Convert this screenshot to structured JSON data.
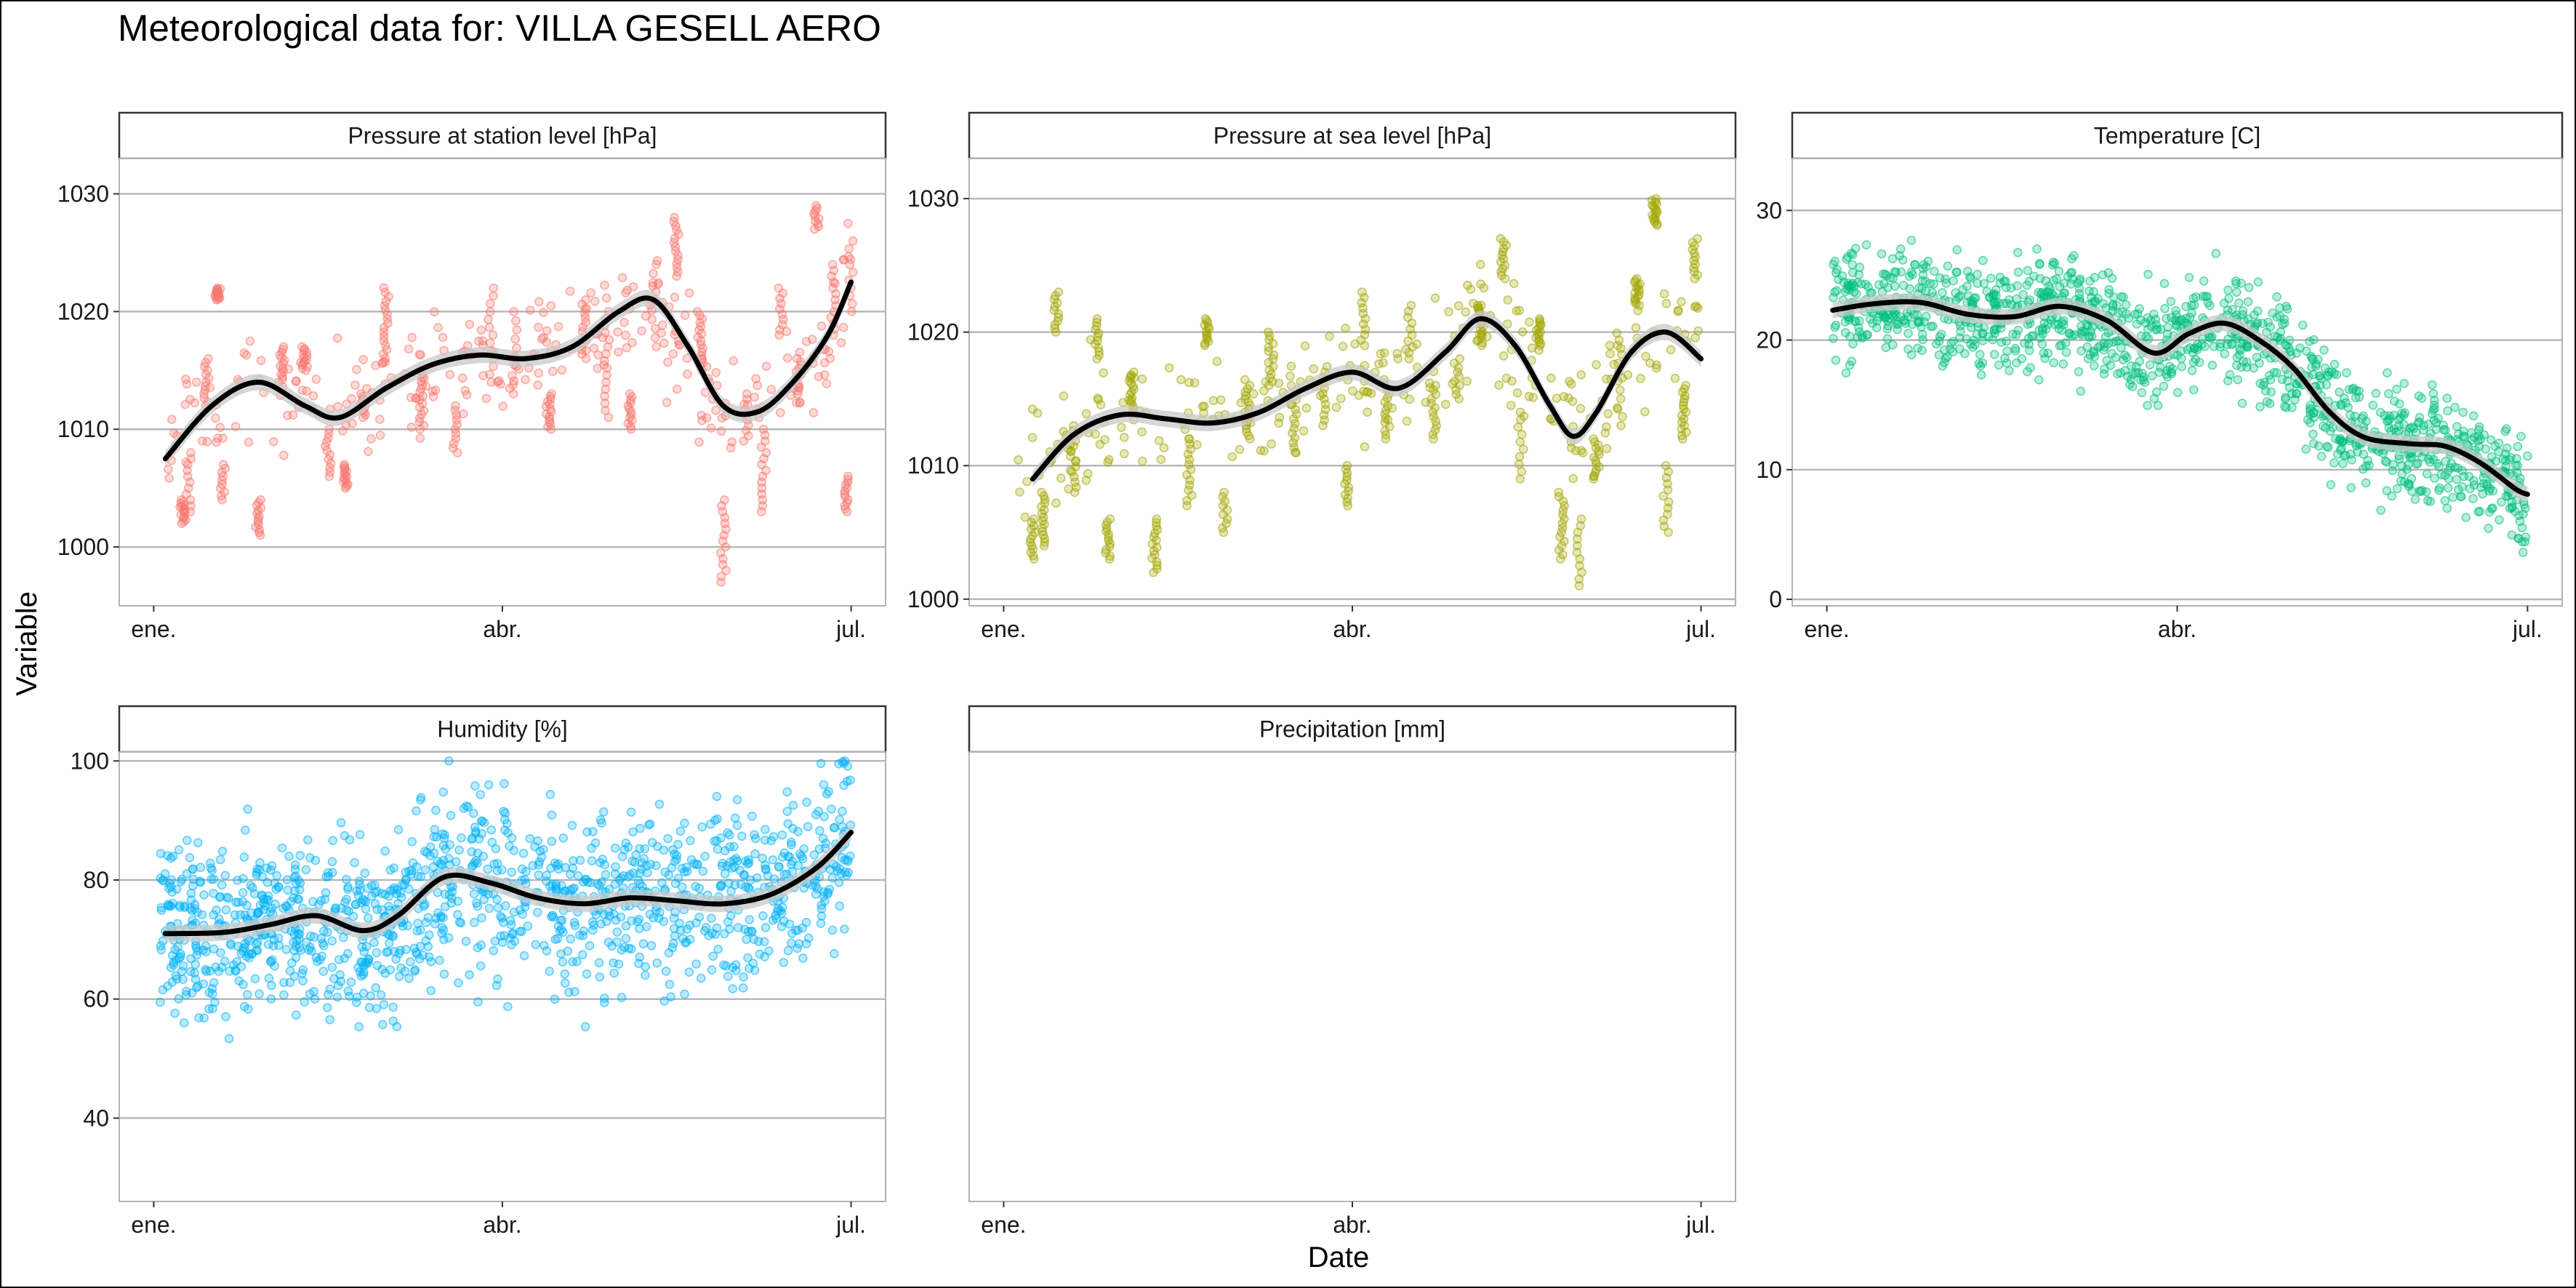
{
  "title": "Meteorological data for: VILLA GESELL AERO",
  "chart_data": {
    "type": "scatter",
    "title": "Meteorological data for: VILLA GESELL AERO",
    "xlabel": "Date",
    "ylabel": "Variable",
    "x_tick_labels": [
      "ene.",
      "abr.",
      "jul."
    ],
    "x_range_months": [
      0,
      6
    ],
    "smoother": {
      "color": "#000000",
      "band": "#c8c8c8"
    },
    "grid": "horizontal major",
    "panels": [
      {
        "name": "Pressure at station level [hPa]",
        "color": "#F8766D",
        "ylim": [
          995,
          1033
        ],
        "yticks": [
          1000,
          1010,
          1020,
          1030
        ],
        "x_dense": [
          0,
          6
        ],
        "trend": [
          [
            0.1,
            1007.5
          ],
          [
            0.5,
            1012
          ],
          [
            0.9,
            1014
          ],
          [
            1.3,
            1012
          ],
          [
            1.6,
            1011
          ],
          [
            2.0,
            1013.5
          ],
          [
            2.4,
            1015.5
          ],
          [
            2.8,
            1016.3
          ],
          [
            3.2,
            1016
          ],
          [
            3.6,
            1017
          ],
          [
            4.0,
            1020
          ],
          [
            4.3,
            1021
          ],
          [
            4.6,
            1017
          ],
          [
            4.9,
            1012
          ],
          [
            5.2,
            1011.5
          ],
          [
            5.5,
            1014
          ],
          [
            5.8,
            1018
          ],
          [
            6.0,
            1022.5
          ]
        ],
        "clusters": [
          [
            0.25,
            1002,
            1004
          ],
          [
            0.3,
            1003,
            1008
          ],
          [
            0.45,
            1012,
            1016
          ],
          [
            0.55,
            1021,
            1022
          ],
          [
            0.6,
            1004,
            1007
          ],
          [
            0.9,
            1001,
            1004
          ],
          [
            1.1,
            1014,
            1017
          ],
          [
            1.3,
            1015,
            1017
          ],
          [
            1.5,
            1006,
            1010
          ],
          [
            1.65,
            1005,
            1007
          ],
          [
            1.8,
            1011,
            1013
          ],
          [
            2.0,
            1016,
            1022
          ],
          [
            2.3,
            1010,
            1015
          ],
          [
            2.6,
            1008,
            1012
          ],
          [
            2.9,
            1014,
            1022
          ],
          [
            3.1,
            1013,
            1020
          ],
          [
            3.4,
            1010,
            1013
          ],
          [
            3.7,
            1016,
            1021
          ],
          [
            3.9,
            1011,
            1020
          ],
          [
            4.1,
            1010,
            1013
          ],
          [
            4.3,
            1017,
            1024
          ],
          [
            4.5,
            1023,
            1028
          ],
          [
            4.7,
            1015,
            1020
          ],
          [
            4.9,
            997,
            1004
          ],
          [
            5.1,
            1009,
            1013
          ],
          [
            5.25,
            1003,
            1010
          ],
          [
            5.4,
            1018,
            1022
          ],
          [
            5.55,
            1013,
            1016
          ],
          [
            5.7,
            1027,
            1029
          ],
          [
            5.85,
            1018,
            1024
          ],
          [
            5.95,
            1003,
            1006
          ],
          [
            6.0,
            1020,
            1026
          ]
        ]
      },
      {
        "name": "Pressure at sea level [hPa]",
        "color": "#A3A500",
        "ylim": [
          999.5,
          1033
        ],
        "yticks": [
          1000,
          1010,
          1020,
          1030
        ],
        "x_dense": [
          0,
          6
        ],
        "trend": [
          [
            0.25,
            1009
          ],
          [
            0.6,
            1012.3
          ],
          [
            1.0,
            1013.8
          ],
          [
            1.4,
            1013.5
          ],
          [
            1.8,
            1013.2
          ],
          [
            2.2,
            1014
          ],
          [
            2.6,
            1015.8
          ],
          [
            3.0,
            1017
          ],
          [
            3.4,
            1015.8
          ],
          [
            3.8,
            1018.5
          ],
          [
            4.1,
            1021
          ],
          [
            4.4,
            1019
          ],
          [
            4.7,
            1014.5
          ],
          [
            4.9,
            1012.2
          ],
          [
            5.1,
            1014
          ],
          [
            5.4,
            1018.5
          ],
          [
            5.7,
            1020
          ],
          [
            6.0,
            1018
          ]
        ],
        "clusters": [
          [
            0.25,
            1003,
            1006
          ],
          [
            0.35,
            1004,
            1008
          ],
          [
            0.45,
            1020,
            1023
          ],
          [
            0.6,
            1008,
            1013
          ],
          [
            0.8,
            1018,
            1021
          ],
          [
            0.9,
            1003,
            1006
          ],
          [
            1.1,
            1014,
            1017
          ],
          [
            1.3,
            1002,
            1006
          ],
          [
            1.6,
            1007,
            1012
          ],
          [
            1.75,
            1019,
            1021
          ],
          [
            1.9,
            1005,
            1008
          ],
          [
            2.1,
            1012,
            1016
          ],
          [
            2.3,
            1016,
            1020
          ],
          [
            2.5,
            1011,
            1016
          ],
          [
            2.75,
            1013,
            1017
          ],
          [
            2.95,
            1007,
            1010
          ],
          [
            3.1,
            1019,
            1023
          ],
          [
            3.3,
            1012,
            1016
          ],
          [
            3.5,
            1018,
            1022
          ],
          [
            3.7,
            1012,
            1016
          ],
          [
            3.9,
            1015,
            1018
          ],
          [
            4.1,
            1019,
            1022
          ],
          [
            4.3,
            1024,
            1027
          ],
          [
            4.45,
            1009,
            1014
          ],
          [
            4.6,
            1019,
            1021
          ],
          [
            4.8,
            1003,
            1008
          ],
          [
            4.95,
            1001,
            1006
          ],
          [
            5.1,
            1009,
            1012
          ],
          [
            5.3,
            1013,
            1019
          ],
          [
            5.45,
            1022,
            1024
          ],
          [
            5.6,
            1028,
            1030
          ],
          [
            5.7,
            1005,
            1010
          ],
          [
            5.85,
            1012,
            1016
          ],
          [
            5.95,
            1024,
            1027
          ]
        ]
      },
      {
        "name": "Temperature [C]",
        "color": "#00BF7D",
        "ylim": [
          -0.5,
          34
        ],
        "yticks": [
          0,
          10,
          20,
          30
        ],
        "x_dense": [
          0,
          6
        ],
        "trend": [
          [
            0.05,
            22.3
          ],
          [
            0.4,
            22.8
          ],
          [
            0.8,
            22.9
          ],
          [
            1.2,
            22
          ],
          [
            1.6,
            21.8
          ],
          [
            2.0,
            22.6
          ],
          [
            2.4,
            21.5
          ],
          [
            2.8,
            19
          ],
          [
            3.1,
            20.5
          ],
          [
            3.4,
            21.3
          ],
          [
            3.7,
            20
          ],
          [
            4.0,
            17.8
          ],
          [
            4.3,
            14.5
          ],
          [
            4.6,
            12.5
          ],
          [
            5.0,
            12
          ],
          [
            5.3,
            11.8
          ],
          [
            5.6,
            10.5
          ],
          [
            5.9,
            8.5
          ],
          [
            6.0,
            8.1
          ]
        ],
        "spread": 4.2
      },
      {
        "name": "Humidity [%]",
        "color": "#00B0F6",
        "ylim": [
          26,
          101.5
        ],
        "yticks": [
          40,
          60,
          80,
          100
        ],
        "x_dense": [
          0,
          6
        ],
        "trend": [
          [
            0.1,
            71
          ],
          [
            0.6,
            71.2
          ],
          [
            1.0,
            72.5
          ],
          [
            1.4,
            74
          ],
          [
            1.8,
            71.5
          ],
          [
            2.1,
            74
          ],
          [
            2.5,
            80.5
          ],
          [
            2.9,
            79.5
          ],
          [
            3.3,
            77
          ],
          [
            3.7,
            76
          ],
          [
            4.1,
            77
          ],
          [
            4.5,
            76.5
          ],
          [
            4.9,
            76
          ],
          [
            5.3,
            77.5
          ],
          [
            5.7,
            82
          ],
          [
            6.0,
            88
          ]
        ],
        "spread": 15
      },
      {
        "name": "Precipitation [mm]",
        "color": "#E76BF3",
        "ylim": null,
        "yticks": [],
        "trend": [],
        "note": "no data"
      }
    ]
  }
}
